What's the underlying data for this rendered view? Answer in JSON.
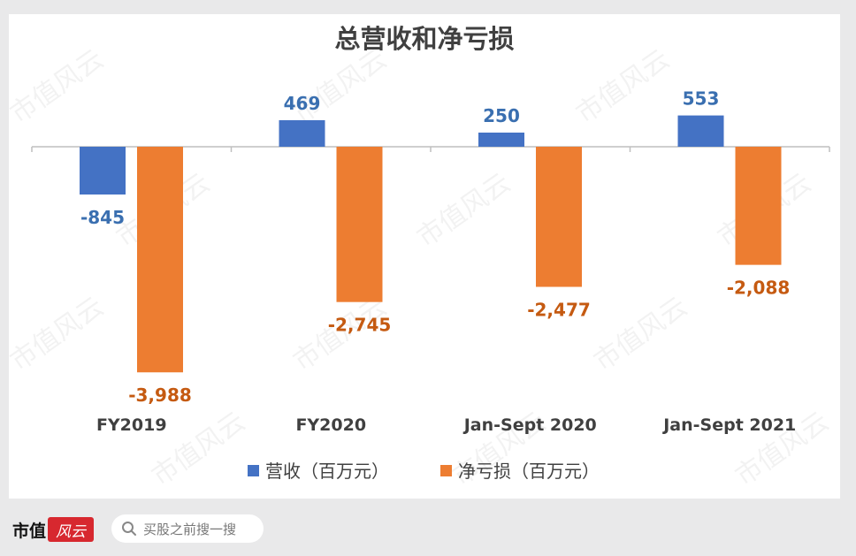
{
  "chart_data": {
    "type": "bar",
    "title": "总营收和净亏损",
    "categories": [
      "FY2019",
      "FY2020",
      "Jan-Sept 2020",
      "Jan-Sept 2021"
    ],
    "series": [
      {
        "name": "营收（百万元）",
        "values": [
          -845,
          469,
          250,
          553
        ],
        "labels": [
          "-845",
          "469",
          "250",
          "553"
        ],
        "color": "#4472c4",
        "label_color": "#3a6fb0"
      },
      {
        "name": "净亏损（百万元）",
        "values": [
          -3988,
          -2745,
          -2477,
          -2088
        ],
        "labels": [
          "-3,988",
          "-2,745",
          "-2,477",
          "-2,088"
        ],
        "color": "#ed7d31",
        "label_color": "#c55a11"
      }
    ],
    "legend": "bottom",
    "grid": false
  },
  "footer": {
    "brand_text": "市值",
    "brand_badge": "风云",
    "search_placeholder": "买股之前搜一搜"
  },
  "watermark": "市值风云"
}
